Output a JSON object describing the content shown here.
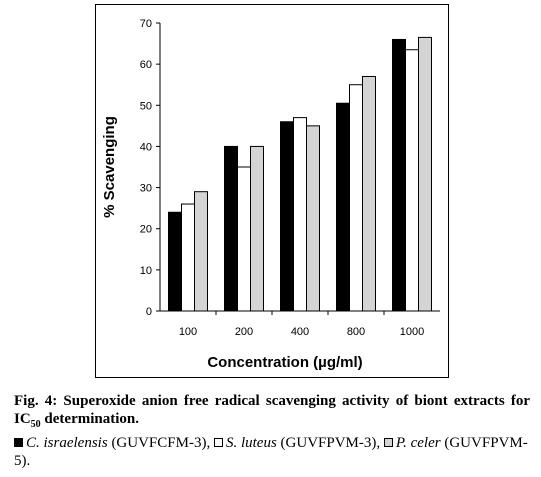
{
  "chart_data": {
    "type": "bar",
    "categories": [
      "100",
      "200",
      "400",
      "800",
      "1000"
    ],
    "series": [
      {
        "name": "C. israelensis (GUVFCFM-3)",
        "values": [
          24,
          40,
          46,
          50.5,
          66
        ],
        "color": "#000000"
      },
      {
        "name": "S. luteus (GUVFPVM-3)",
        "values": [
          26,
          35,
          47,
          55,
          63.5
        ],
        "color": "#ffffff"
      },
      {
        "name": "P. celer (GUVFPVM-5)",
        "values": [
          29,
          40,
          45,
          57,
          66.5
        ],
        "color": "#d4d4d4"
      }
    ],
    "xlabel": "Concentration (µg/ml)",
    "ylabel": "% Scavenging",
    "ylim": [
      0,
      70
    ],
    "yticks": [
      0,
      10,
      20,
      30,
      40,
      50,
      60,
      70
    ],
    "grid": false,
    "legend_placement": "below caption"
  },
  "caption": {
    "fig_prefix": "Fig. 4: Superoxide anion free radical scavenging activity of biont extracts for IC",
    "fig_sub": "50",
    "fig_suffix": " determination.",
    "legend": [
      {
        "species": "C. israelensis",
        "code": " (GUVFCFM-3)",
        "sep": ", "
      },
      {
        "species": "S. luteus",
        "code": " (GUVFPVM-3)",
        "sep": ", "
      },
      {
        "species": "P. celer",
        "code": " (GUVFPVM-5).",
        "sep": ""
      }
    ]
  }
}
